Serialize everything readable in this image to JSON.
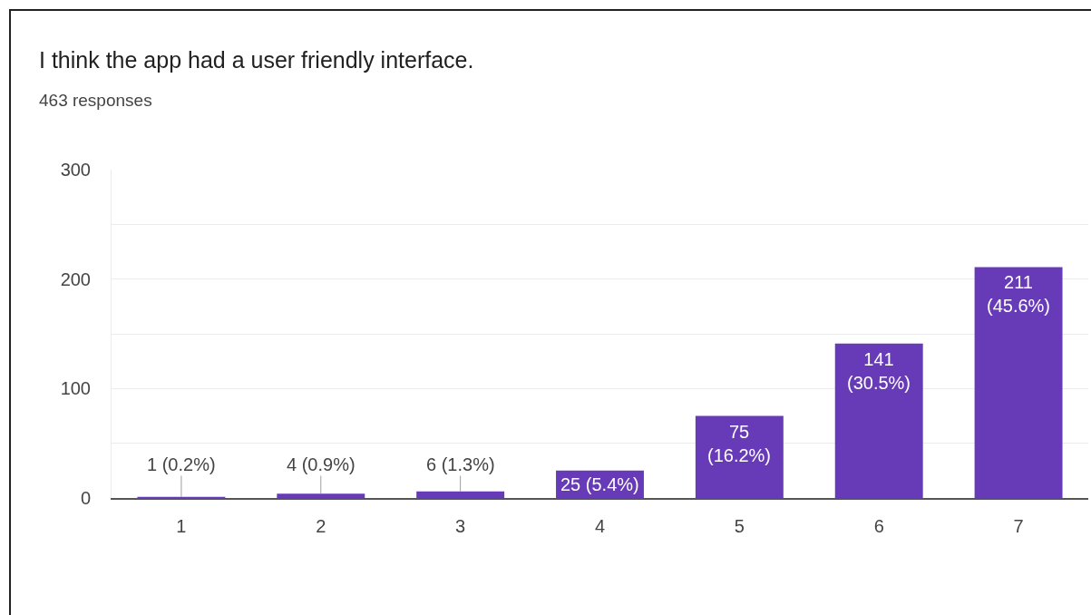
{
  "chart_data": {
    "type": "bar",
    "title": "I think the app had a user friendly interface.",
    "subtitle": "463 responses",
    "categories": [
      "1",
      "2",
      "3",
      "4",
      "5",
      "6",
      "7"
    ],
    "values": [
      1,
      4,
      6,
      25,
      75,
      141,
      211
    ],
    "value_labels": [
      "1 (0.2%)",
      "4 (0.9%)",
      "6 (1.3%)",
      "25 (5.4%)",
      "75 (16.2%)",
      "141 (30.5%)",
      "211 (45.6%)"
    ],
    "color": "#673ab7",
    "ylim": [
      0,
      300
    ],
    "yticks": [
      0,
      {
        "value": 50,
        "label": null
      },
      100,
      {
        "value": 150,
        "label": null
      },
      200,
      {
        "value": 250,
        "label": null
      },
      300
    ],
    "grid": "y"
  }
}
